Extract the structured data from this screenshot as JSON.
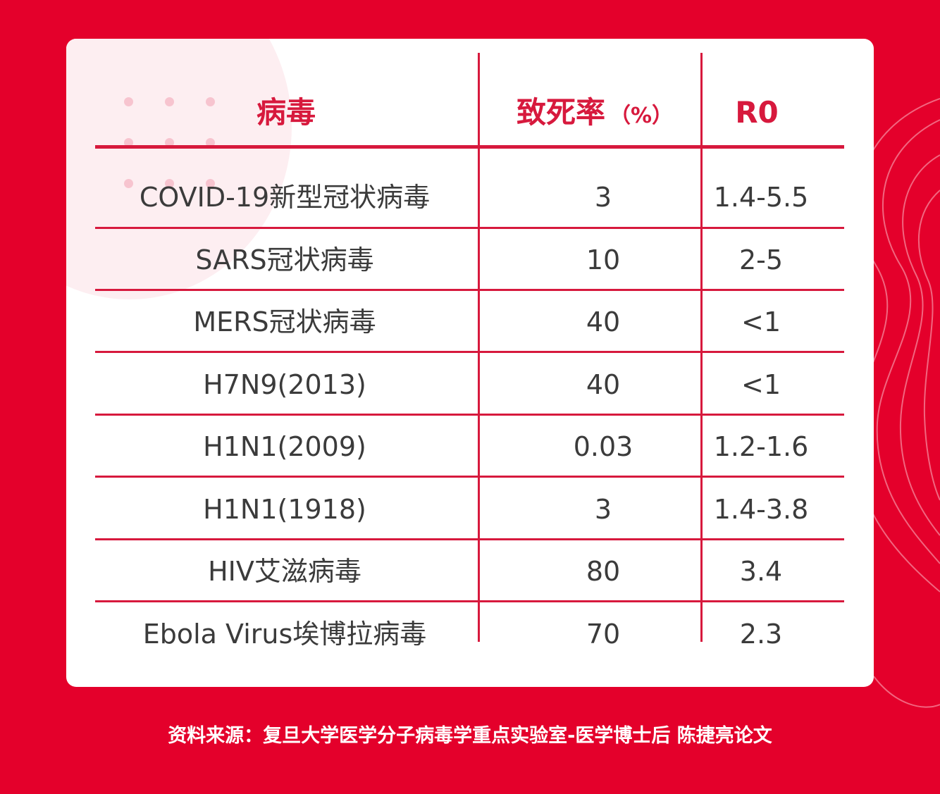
{
  "table": {
    "headers": {
      "virus": "病毒",
      "fatality": "致死率",
      "fatality_unit": "（%）",
      "r0": "R0"
    },
    "rows": [
      {
        "virus": "COVID-19新型冠状病毒",
        "fatality": "3",
        "r0": "1.4-5.5"
      },
      {
        "virus": "SARS冠状病毒",
        "fatality": "10",
        "r0": "2-5"
      },
      {
        "virus": "MERS冠状病毒",
        "fatality": "40",
        "r0": "<1"
      },
      {
        "virus": "H7N9(2013)",
        "fatality": "40",
        "r0": "<1"
      },
      {
        "virus": "H1N1(2009)",
        "fatality": "0.03",
        "r0": "1.2-1.6"
      },
      {
        "virus": "H1N1(1918)",
        "fatality": "3",
        "r0": "1.4-3.8"
      },
      {
        "virus": "HIV艾滋病毒",
        "fatality": "80",
        "r0": "3.4"
      },
      {
        "virus": "Ebola Virus埃博拉病毒",
        "fatality": "70",
        "r0": "2.3"
      }
    ]
  },
  "footer": {
    "source": "资料来源：复旦大学医学分子病毒学重点实验室-医学博士后 陈捷亮论文"
  },
  "colors": {
    "background": "#e4002b",
    "accent": "#d7193d",
    "card": "#ffffff",
    "text": "#3b3b3b"
  }
}
